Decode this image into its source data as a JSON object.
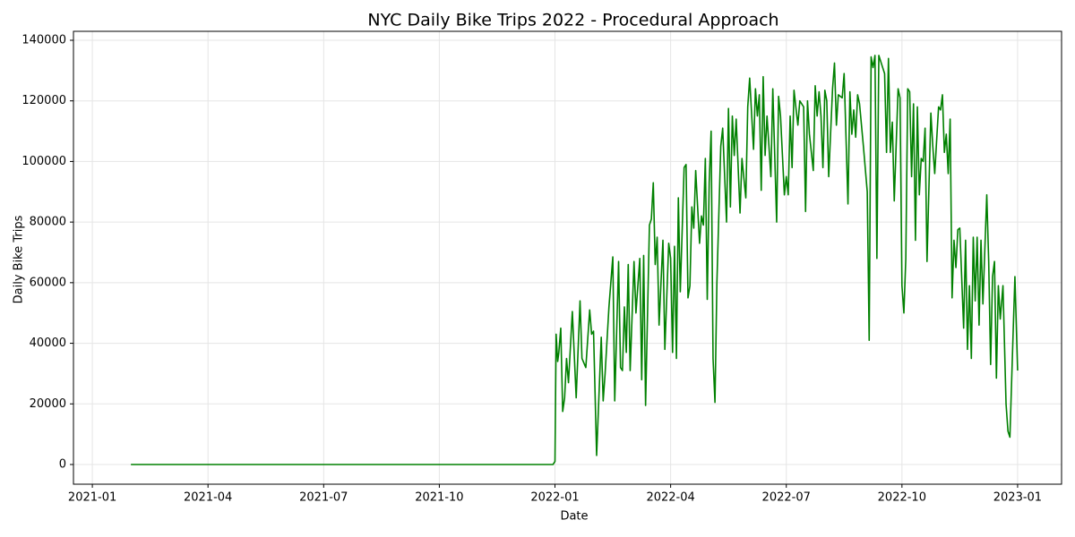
{
  "chart_data": {
    "type": "line",
    "title": "NYC Daily Bike Trips 2022 - Procedural Approach",
    "xlabel": "Date",
    "ylabel": "Daily Bike Trips",
    "x": [
      1.0,
      11.95,
      12.0,
      12.03,
      12.07,
      12.1,
      12.15,
      12.2,
      12.25,
      12.3,
      12.35,
      12.45,
      12.55,
      12.65,
      12.7,
      12.8,
      12.9,
      12.95,
      13.0,
      13.08,
      13.2,
      13.25,
      13.3,
      13.4,
      13.5,
      13.55,
      13.65,
      13.7,
      13.75,
      13.8,
      13.85,
      13.9,
      13.95,
      14.05,
      14.1,
      14.2,
      14.25,
      14.3,
      14.35,
      14.45,
      14.5,
      14.55,
      14.6,
      14.65,
      14.7,
      14.8,
      14.85,
      14.95,
      15.0,
      15.05,
      15.1,
      15.15,
      15.2,
      15.25,
      15.35,
      15.4,
      15.45,
      15.5,
      15.55,
      15.6,
      15.65,
      15.75,
      15.8,
      15.85,
      15.9,
      15.95,
      16.0,
      16.05,
      16.1,
      16.15,
      16.2,
      16.3,
      16.35,
      16.45,
      16.5,
      16.55,
      16.6,
      16.65,
      16.7,
      16.8,
      16.85,
      16.95,
      17.0,
      17.05,
      17.15,
      17.2,
      17.25,
      17.3,
      17.35,
      17.4,
      17.45,
      17.5,
      17.6,
      17.65,
      17.75,
      17.8,
      17.85,
      17.95,
      18.0,
      18.05,
      18.1,
      18.15,
      18.2,
      18.3,
      18.35,
      18.45,
      18.5,
      18.55,
      18.6,
      18.7,
      18.75,
      18.8,
      18.85,
      18.9,
      18.95,
      19.0,
      19.05,
      19.1,
      19.2,
      19.25,
      19.3,
      19.35,
      19.45,
      19.5,
      19.6,
      19.65,
      19.7,
      19.75,
      19.8,
      19.85,
      19.9,
      20.0,
      20.1,
      20.15,
      20.2,
      20.25,
      20.3,
      20.35,
      20.4,
      20.45,
      20.55,
      20.6,
      20.65,
      20.7,
      20.75,
      20.8,
      20.9,
      20.95,
      21.0,
      21.05,
      21.1,
      21.15,
      21.2,
      21.25,
      21.3,
      21.35,
      21.4,
      21.45,
      21.5,
      21.55,
      21.6,
      21.65,
      21.75,
      21.8,
      21.85,
      21.95,
      22.0,
      22.05,
      22.1,
      22.15,
      22.2,
      22.25,
      22.3,
      22.35,
      22.4,
      22.45,
      22.5,
      22.6,
      22.65,
      22.7,
      22.75,
      22.8,
      22.85,
      22.9,
      22.95,
      23.0,
      23.05,
      23.1,
      23.2,
      23.25,
      23.3,
      23.35,
      23.4,
      23.45,
      23.5,
      23.55,
      23.62,
      23.7,
      23.75,
      23.8,
      23.88,
      23.93,
      24.0
    ],
    "series": [
      {
        "name": "Daily Bike Trips",
        "color": "#008000",
        "values": [
          0,
          0,
          1000,
          43000,
          34000,
          37000,
          45000,
          17500,
          22000,
          35000,
          27000,
          50500,
          22000,
          54000,
          35000,
          32000,
          51000,
          43000,
          44000,
          3000,
          42000,
          21000,
          30000,
          52000,
          68500,
          21000,
          67000,
          32000,
          31000,
          52000,
          37000,
          66000,
          31000,
          67000,
          50000,
          68000,
          28000,
          69000,
          19500,
          79000,
          81000,
          93000,
          66000,
          75000,
          46000,
          74000,
          38000,
          73000,
          68000,
          37000,
          72000,
          35000,
          88000,
          57000,
          98000,
          99000,
          55000,
          59000,
          85000,
          78000,
          97000,
          73000,
          82000,
          79000,
          101000,
          54500,
          93000,
          110000,
          35000,
          20500,
          60000,
          105000,
          111000,
          80000,
          117500,
          85000,
          115000,
          102000,
          114000,
          83000,
          101000,
          88000,
          118000,
          127500,
          104000,
          124000,
          115000,
          122000,
          90500,
          128000,
          102000,
          115000,
          95000,
          124000,
          80000,
          121500,
          115000,
          89000,
          95000,
          89000,
          115000,
          98000,
          123500,
          112000,
          120000,
          118000,
          83500,
          120000,
          109000,
          97000,
          125000,
          115000,
          123000,
          115000,
          98000,
          123500,
          120000,
          95000,
          124000,
          132500,
          112000,
          122000,
          121000,
          129000,
          86000,
          123000,
          109000,
          117000,
          108000,
          122000,
          119000,
          105000,
          90000,
          41000,
          134500,
          131000,
          135000,
          68000,
          135000,
          133000,
          129000,
          103000,
          134000,
          103000,
          113000,
          87000,
          124000,
          121000,
          59000,
          50000,
          68000,
          124000,
          123000,
          95000,
          119000,
          74000,
          118000,
          89000,
          101000,
          100000,
          111000,
          67000,
          116000,
          105000,
          96000,
          118000,
          117000,
          122000,
          103000,
          109000,
          96000,
          114000,
          55000,
          74000,
          65000,
          77500,
          78000,
          45000,
          74000,
          38000,
          59000,
          35000,
          75000,
          54000,
          75000,
          46000,
          74000,
          53000,
          89000,
          67000,
          33000,
          62000,
          67000,
          28500,
          59000,
          48000,
          59000,
          20000,
          11000,
          9000,
          42000,
          62000,
          31000
        ]
      }
    ],
    "xlim": [
      -0.49,
      25.14
    ],
    "xticks": [
      {
        "value": 0,
        "label": "2021-01"
      },
      {
        "value": 3,
        "label": "2021-04"
      },
      {
        "value": 6,
        "label": "2021-07"
      },
      {
        "value": 9,
        "label": "2021-10"
      },
      {
        "value": 12,
        "label": "2022-01"
      },
      {
        "value": 15,
        "label": "2022-04"
      },
      {
        "value": 18,
        "label": "2022-07"
      },
      {
        "value": 21,
        "label": "2022-10"
      },
      {
        "value": 24,
        "label": "2023-01"
      }
    ],
    "ylim": [
      -6500,
      142950
    ],
    "yticks": [
      0,
      20000,
      40000,
      60000,
      80000,
      100000,
      120000,
      140000
    ],
    "grid": true
  }
}
